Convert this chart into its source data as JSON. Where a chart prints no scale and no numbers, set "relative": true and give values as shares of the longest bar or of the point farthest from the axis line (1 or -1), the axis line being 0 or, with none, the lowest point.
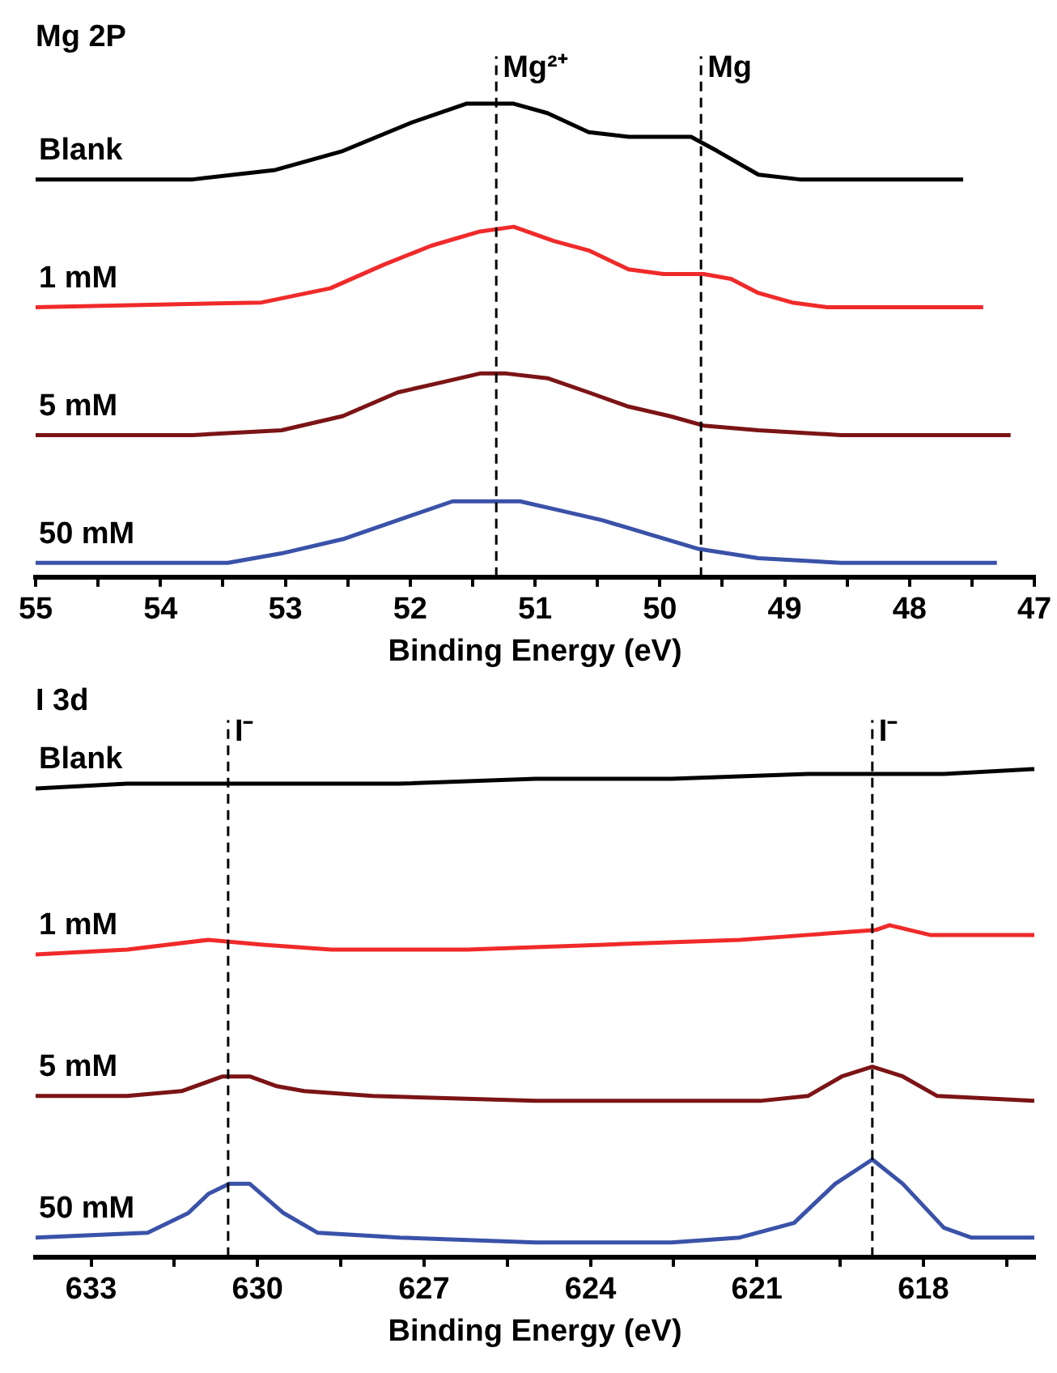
{
  "chart_data": [
    {
      "type": "line",
      "title": "Mg 2P",
      "xlabel": "Binding Energy (eV)",
      "relative": true,
      "marker": "none",
      "line_style": "solid",
      "legend": false,
      "xlim": [
        55,
        47
      ],
      "xticks": [
        55,
        {
          "value": 54.5,
          "label": null
        },
        54,
        {
          "value": 53.5,
          "label": null
        },
        53,
        {
          "value": 52.5,
          "label": null
        },
        52,
        {
          "value": 51.5,
          "label": null
        },
        51,
        {
          "value": 50.5,
          "label": null
        },
        50,
        {
          "value": 49.5,
          "label": null
        },
        49,
        {
          "value": 48.5,
          "label": null
        },
        48,
        {
          "value": 47.5,
          "label": null
        },
        47
      ],
      "ref_lines": [
        {
          "axis": "x",
          "value": 51.31,
          "label": "Mg²⁺",
          "color": "#000000",
          "line_style": "dashed"
        },
        {
          "axis": "x",
          "value": 49.67,
          "label": "Mg",
          "color": "#000000",
          "line_style": "dashed"
        }
      ],
      "series": [
        {
          "name": "Blank",
          "color": "#000000",
          "x": [
            55,
            53.74,
            53.08,
            52.54,
            51.99,
            51.55,
            51.34,
            51.17,
            50.9,
            50.57,
            50.25,
            49.97,
            49.75,
            49.54,
            49.21,
            48.88,
            48.28,
            47.57
          ],
          "values": [
            0.84,
            0.84,
            0.86,
            0.9,
            0.96,
            1.0,
            1.0,
            1.0,
            0.98,
            0.94,
            0.93,
            0.93,
            0.93,
            0.9,
            0.85,
            0.84,
            0.84,
            0.84
          ]
        },
        {
          "name": "1 mM",
          "color": "#f02a2a",
          "x": [
            55,
            53.19,
            52.64,
            52.21,
            51.83,
            51.44,
            51.17,
            50.85,
            50.57,
            50.25,
            49.97,
            49.65,
            49.43,
            49.21,
            48.94,
            48.66,
            47.41
          ],
          "values": [
            0.57,
            0.58,
            0.61,
            0.66,
            0.7,
            0.73,
            0.74,
            0.71,
            0.69,
            0.65,
            0.64,
            0.64,
            0.63,
            0.6,
            0.58,
            0.57,
            0.57
          ]
        },
        {
          "name": "5 mM",
          "color": "#7b1416",
          "x": [
            55,
            53.74,
            53.03,
            52.54,
            52.1,
            51.77,
            51.44,
            51.23,
            50.9,
            50.57,
            50.25,
            49.92,
            49.65,
            49.21,
            48.55,
            47.19
          ],
          "values": [
            0.3,
            0.3,
            0.31,
            0.34,
            0.39,
            0.41,
            0.43,
            0.43,
            0.42,
            0.39,
            0.36,
            0.34,
            0.32,
            0.31,
            0.3,
            0.3
          ]
        },
        {
          "name": "50 mM",
          "color": "#3a52a8",
          "x": [
            55,
            53.46,
            53.03,
            52.54,
            52.1,
            51.66,
            51.44,
            51.12,
            50.79,
            50.46,
            50.08,
            49.7,
            49.21,
            48.55,
            47.3
          ],
          "values": [
            0.03,
            0.03,
            0.05,
            0.08,
            0.12,
            0.16,
            0.16,
            0.16,
            0.14,
            0.12,
            0.09,
            0.06,
            0.04,
            0.03,
            0.03
          ]
        }
      ]
    },
    {
      "type": "line",
      "title": "I 3d",
      "xlabel": "Binding Energy (eV)",
      "relative": true,
      "marker": "none",
      "line_style": "solid",
      "legend": false,
      "xlim": [
        634,
        616
      ],
      "xticks": [
        633,
        {
          "value": 631.5,
          "label": null
        },
        630,
        {
          "value": 628.5,
          "label": null
        },
        627,
        {
          "value": 625.5,
          "label": null
        },
        624,
        {
          "value": 622.5,
          "label": null
        },
        621,
        {
          "value": 619.5,
          "label": null
        },
        618,
        {
          "value": 616.5,
          "label": null
        }
      ],
      "ref_lines": [
        {
          "axis": "x",
          "value": 630.53,
          "label": "I⁻",
          "color": "#000000",
          "line_style": "dashed"
        },
        {
          "axis": "x",
          "value": 618.92,
          "label": "I⁻",
          "color": "#000000",
          "line_style": "dashed"
        }
      ],
      "series": [
        {
          "name": "Blank",
          "color": "#000000",
          "x": [
            634,
            632.35,
            629.9,
            627.44,
            624.99,
            622.54,
            620.08,
            618.86,
            617.63,
            616
          ],
          "values": [
            0.96,
            0.97,
            0.97,
            0.97,
            0.98,
            0.98,
            0.99,
            0.99,
            0.99,
            1.0
          ]
        },
        {
          "name": "1 mM",
          "color": "#f02a2a",
          "x": [
            634,
            632.35,
            630.88,
            629.9,
            628.67,
            626.22,
            623.76,
            621.31,
            620.08,
            618.86,
            618.61,
            617.88,
            616
          ],
          "values": [
            0.62,
            0.63,
            0.65,
            0.64,
            0.63,
            0.63,
            0.64,
            0.65,
            0.66,
            0.67,
            0.68,
            0.66,
            0.66
          ]
        },
        {
          "name": "5 mM",
          "color": "#7b1416",
          "x": [
            634,
            632.35,
            631.37,
            630.63,
            630.14,
            629.65,
            629.16,
            627.93,
            624.99,
            622.54,
            620.94,
            620.08,
            619.47,
            618.92,
            618.37,
            617.75,
            616
          ],
          "values": [
            0.33,
            0.33,
            0.34,
            0.37,
            0.37,
            0.35,
            0.34,
            0.33,
            0.32,
            0.32,
            0.32,
            0.33,
            0.37,
            0.39,
            0.37,
            0.33,
            0.32
          ]
        },
        {
          "name": "50 mM",
          "color": "#3a52a8",
          "x": [
            634,
            631.98,
            631.25,
            630.88,
            630.51,
            630.14,
            629.53,
            628.92,
            627.44,
            624.99,
            622.54,
            621.31,
            620.33,
            619.59,
            618.92,
            618.37,
            617.63,
            617.14,
            616
          ],
          "values": [
            0.04,
            0.05,
            0.09,
            0.13,
            0.15,
            0.15,
            0.09,
            0.05,
            0.04,
            0.03,
            0.03,
            0.04,
            0.07,
            0.15,
            0.2,
            0.15,
            0.06,
            0.04,
            0.04
          ]
        }
      ]
    }
  ]
}
